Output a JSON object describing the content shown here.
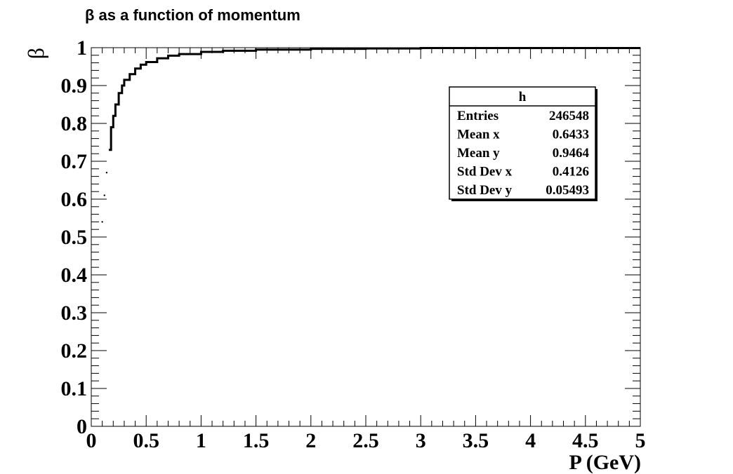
{
  "chart_data": {
    "type": "scatter",
    "title": "β as a function of momentum",
    "xlabel": "P (GeV)",
    "ylabel": "β",
    "xlim": [
      0,
      5
    ],
    "ylim": [
      0,
      1
    ],
    "x_ticks": [
      "0",
      "0.5",
      "1",
      "1.5",
      "2",
      "2.5",
      "3",
      "3.5",
      "4",
      "4.5",
      "5"
    ],
    "y_ticks": [
      "0",
      "0.1",
      "0.2",
      "0.3",
      "0.4",
      "0.5",
      "0.6",
      "0.7",
      "0.8",
      "0.9",
      "1"
    ],
    "grid": false,
    "series": [
      {
        "x": [
          0.1,
          0.12,
          0.14,
          0.16,
          0.18,
          0.2,
          0.22,
          0.25,
          0.28,
          0.3,
          0.35,
          0.4,
          0.45,
          0.5,
          0.6,
          0.7,
          0.8,
          1.0,
          1.2,
          1.5,
          2.0,
          2.5,
          3.0
        ],
        "y": [
          0.54,
          0.61,
          0.67,
          0.73,
          0.79,
          0.82,
          0.85,
          0.88,
          0.9,
          0.915,
          0.93,
          0.945,
          0.955,
          0.962,
          0.972,
          0.979,
          0.983,
          0.989,
          0.992,
          0.995,
          0.997,
          0.998,
          0.999
        ],
        "color": "#000000"
      }
    ],
    "stats_box": {
      "name": "h",
      "rows": [
        {
          "label": "Entries",
          "value": "246548"
        },
        {
          "label": "Mean x",
          "value": "0.6433"
        },
        {
          "label": "Mean y",
          "value": "0.9464"
        },
        {
          "label": "Std Dev x",
          "value": "0.4126"
        },
        {
          "label": "Std Dev y",
          "value": "0.05493"
        }
      ]
    }
  }
}
